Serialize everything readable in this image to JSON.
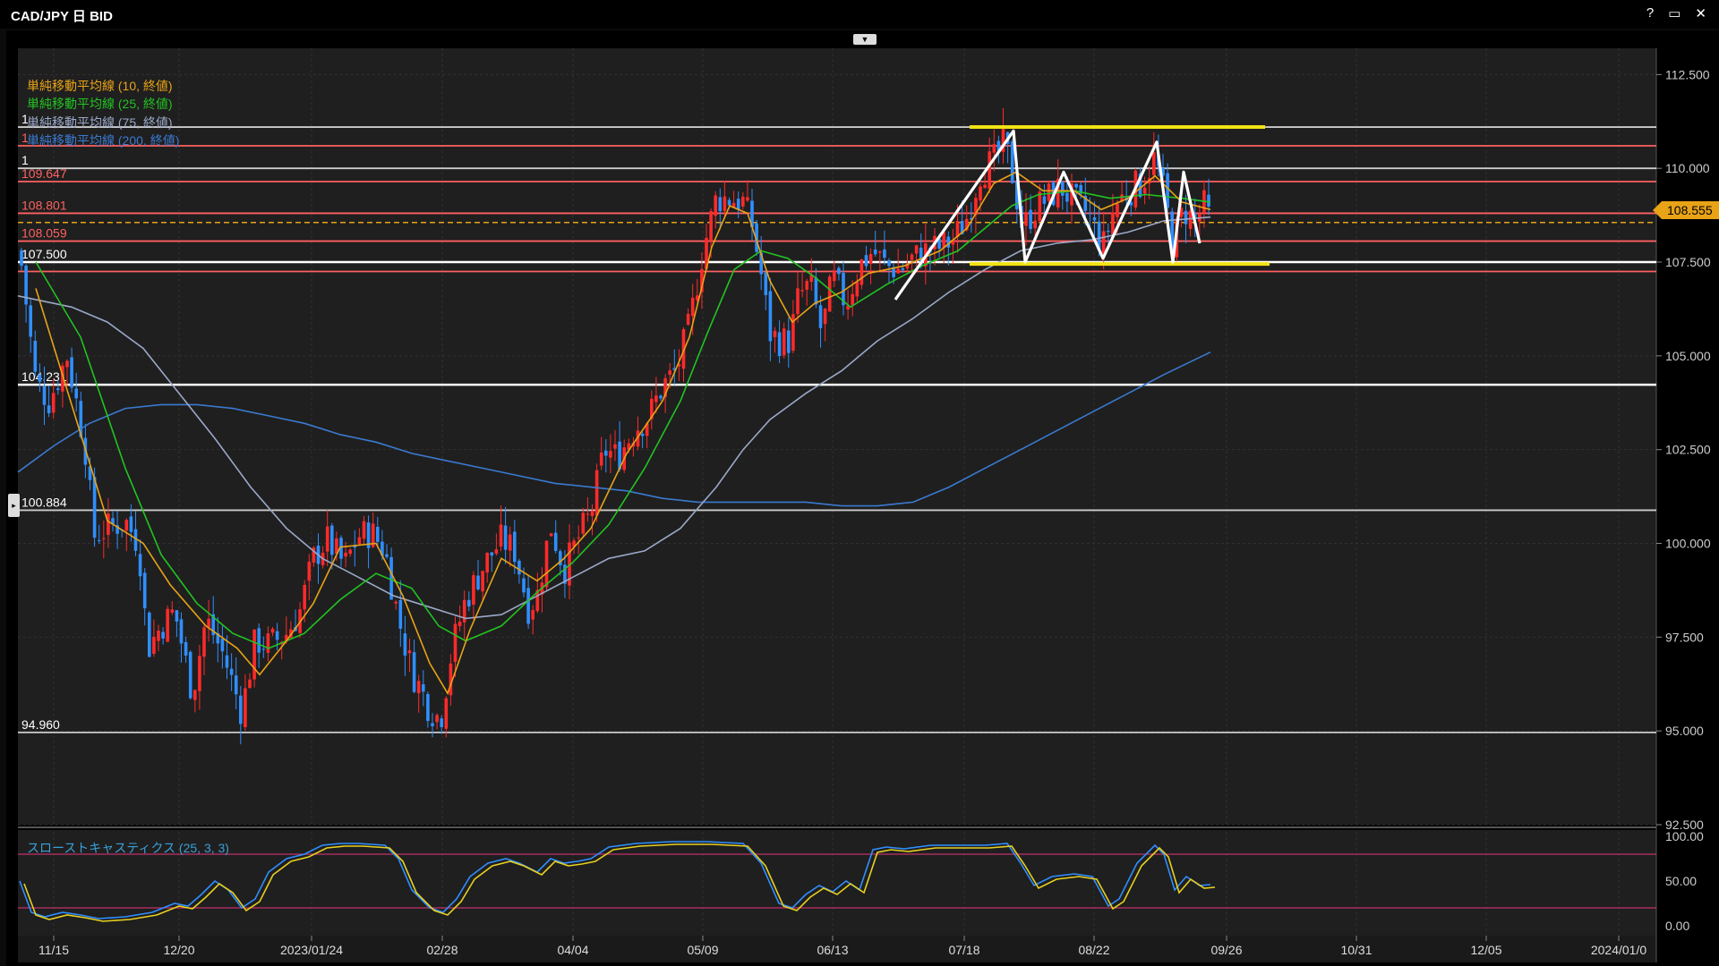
{
  "window": {
    "title": "CAD/JPY 日 BID",
    "controls": [
      "?",
      "▭",
      "✕"
    ]
  },
  "legend": [
    {
      "label": "単純移動平均線 (10, 終値)",
      "color": "#e8a317"
    },
    {
      "label": "単純移動平均線 (25, 終値)",
      "color": "#22c322"
    },
    {
      "label": "単純移動平均線 (75, 終値)",
      "color": "#9aa8c8"
    },
    {
      "label": "単純移動平均線 (200, 終値)",
      "color": "#3a7ad0"
    }
  ],
  "oscillator_label": "スローストキャスティクス (25, 3, 3)",
  "current_price": "108.555",
  "chart_data": {
    "type": "line",
    "title": "CAD/JPY 日 BID",
    "y_range": [
      92.5,
      113.2
    ],
    "y_ticks": [
      "112.500",
      "110.000",
      "107.500",
      "105.000",
      "102.500",
      "100.000",
      "97.500",
      "95.000",
      "92.500"
    ],
    "x_ticks": [
      "11/15",
      "12/20",
      "2023/01/24",
      "02/28",
      "04/04",
      "05/09",
      "06/13",
      "07/18",
      "08/22",
      "09/26",
      "10/31",
      "12/05",
      "2024/01/0"
    ],
    "levels": [
      {
        "value": 111.1,
        "color": "#cccccc",
        "label": "1"
      },
      {
        "value": 110.6,
        "color": "#ff6060",
        "label": "1"
      },
      {
        "value": 110.0,
        "color": "#cccccc",
        "label": "1"
      },
      {
        "value": 109.647,
        "color": "#ff6060",
        "label": "109.647"
      },
      {
        "value": 108.801,
        "color": "#ff6060",
        "label": "108.801"
      },
      {
        "value": 108.555,
        "color": "#e8a317",
        "dashed": true,
        "label": ""
      },
      {
        "value": 108.059,
        "color": "#ff6060",
        "label": "108.059"
      },
      {
        "value": 107.5,
        "color": "#ffffff",
        "label": "107.500"
      },
      {
        "value": 107.25,
        "color": "#ff6060",
        "label": ""
      },
      {
        "value": 104.231,
        "color": "#ffffff",
        "label": "104.231"
      },
      {
        "value": 100.884,
        "color": "#cccccc",
        "label": "100.884"
      },
      {
        "value": 94.96,
        "color": "#cccccc",
        "label": "94.960"
      }
    ],
    "trendlines_yellow": [
      {
        "from": [
          1083,
          111.1
        ],
        "to": [
          1413,
          111.1
        ]
      },
      {
        "from": [
          1083,
          107.45
        ],
        "to": [
          1418,
          107.45
        ]
      }
    ],
    "price_anchors": [
      [
        22,
        107.8
      ],
      [
        40,
        104.3
      ],
      [
        55,
        103.8
      ],
      [
        75,
        105.0
      ],
      [
        95,
        102.6
      ],
      [
        105,
        100.2
      ],
      [
        120,
        100.4
      ],
      [
        140,
        100.6
      ],
      [
        155,
        100.0
      ],
      [
        165,
        97.2
      ],
      [
        180,
        97.8
      ],
      [
        195,
        98.2
      ],
      [
        215,
        96.0
      ],
      [
        230,
        98.0
      ],
      [
        250,
        97.0
      ],
      [
        270,
        95.5
      ],
      [
        285,
        97.4
      ],
      [
        300,
        97.3
      ],
      [
        320,
        97.6
      ],
      [
        335,
        98.2
      ],
      [
        350,
        99.6
      ],
      [
        365,
        100.1
      ],
      [
        385,
        99.4
      ],
      [
        400,
        100.2
      ],
      [
        415,
        100.3
      ],
      [
        430,
        99.8
      ],
      [
        445,
        98.0
      ],
      [
        460,
        96.6
      ],
      [
        480,
        95.6
      ],
      [
        492,
        95.3
      ],
      [
        505,
        97.2
      ],
      [
        520,
        98.5
      ],
      [
        540,
        99.4
      ],
      [
        560,
        100.1
      ],
      [
        575,
        99.8
      ],
      [
        590,
        98.3
      ],
      [
        600,
        98.6
      ],
      [
        615,
        100.5
      ],
      [
        630,
        99.3
      ],
      [
        645,
        100.1
      ],
      [
        660,
        100.8
      ],
      [
        675,
        102.5
      ],
      [
        690,
        102.3
      ],
      [
        710,
        103.1
      ],
      [
        725,
        103.4
      ],
      [
        740,
        104.2
      ],
      [
        755,
        104.6
      ],
      [
        770,
        105.8
      ],
      [
        785,
        107.8
      ],
      [
        800,
        109.2
      ],
      [
        815,
        109.2
      ],
      [
        830,
        109.1
      ],
      [
        840,
        108.5
      ],
      [
        850,
        107.2
      ],
      [
        860,
        105.6
      ],
      [
        872,
        105.4
      ],
      [
        882,
        105.4
      ],
      [
        892,
        106.6
      ],
      [
        905,
        106.9
      ],
      [
        918,
        105.6
      ],
      [
        930,
        107.1
      ],
      [
        945,
        106.4
      ],
      [
        960,
        107.4
      ],
      [
        975,
        107.8
      ],
      [
        990,
        107.4
      ],
      [
        1005,
        107.3
      ],
      [
        1020,
        107.6
      ],
      [
        1035,
        107.8
      ],
      [
        1050,
        107.9
      ],
      [
        1065,
        108.1
      ],
      [
        1080,
        108.7
      ],
      [
        1095,
        109.9
      ],
      [
        1110,
        110.2
      ],
      [
        1122,
        110.7
      ],
      [
        1132,
        109.7
      ],
      [
        1142,
        108.4
      ],
      [
        1155,
        108.9
      ],
      [
        1170,
        109.2
      ],
      [
        1185,
        109.5
      ],
      [
        1200,
        109.1
      ],
      [
        1215,
        108.8
      ],
      [
        1232,
        107.9
      ],
      [
        1245,
        109.0
      ],
      [
        1260,
        109.4
      ],
      [
        1275,
        109.6
      ],
      [
        1290,
        110.3
      ],
      [
        1300,
        109.3
      ],
      [
        1310,
        108.0
      ],
      [
        1322,
        108.9
      ],
      [
        1335,
        108.6
      ],
      [
        1345,
        109.0
      ],
      [
        1352,
        108.6
      ]
    ],
    "ma10": [
      [
        40,
        106.8
      ],
      [
        80,
        103.7
      ],
      [
        120,
        100.6
      ],
      [
        160,
        100.0
      ],
      [
        190,
        98.9
      ],
      [
        230,
        97.8
      ],
      [
        265,
        97.2
      ],
      [
        290,
        96.5
      ],
      [
        320,
        97.4
      ],
      [
        350,
        98.4
      ],
      [
        380,
        99.9
      ],
      [
        420,
        100.0
      ],
      [
        450,
        98.6
      ],
      [
        480,
        96.8
      ],
      [
        500,
        96.0
      ],
      [
        525,
        97.7
      ],
      [
        560,
        99.6
      ],
      [
        600,
        99.0
      ],
      [
        630,
        99.6
      ],
      [
        660,
        100.4
      ],
      [
        700,
        102.4
      ],
      [
        740,
        103.8
      ],
      [
        770,
        105.5
      ],
      [
        795,
        107.9
      ],
      [
        815,
        109.0
      ],
      [
        835,
        108.8
      ],
      [
        860,
        107.0
      ],
      [
        885,
        105.9
      ],
      [
        910,
        106.4
      ],
      [
        940,
        106.7
      ],
      [
        970,
        107.2
      ],
      [
        1010,
        107.4
      ],
      [
        1050,
        107.8
      ],
      [
        1080,
        108.4
      ],
      [
        1110,
        109.6
      ],
      [
        1135,
        109.9
      ],
      [
        1165,
        109.4
      ],
      [
        1200,
        109.4
      ],
      [
        1230,
        108.9
      ],
      [
        1260,
        109.2
      ],
      [
        1290,
        109.8
      ],
      [
        1320,
        109.1
      ],
      [
        1352,
        108.9
      ]
    ],
    "ma25": [
      [
        40,
        107.5
      ],
      [
        90,
        105.5
      ],
      [
        140,
        102.0
      ],
      [
        180,
        99.7
      ],
      [
        220,
        98.4
      ],
      [
        260,
        97.6
      ],
      [
        300,
        97.2
      ],
      [
        340,
        97.6
      ],
      [
        380,
        98.5
      ],
      [
        420,
        99.2
      ],
      [
        460,
        98.8
      ],
      [
        490,
        97.8
      ],
      [
        520,
        97.4
      ],
      [
        560,
        97.8
      ],
      [
        600,
        98.7
      ],
      [
        640,
        99.5
      ],
      [
        680,
        100.5
      ],
      [
        720,
        102.0
      ],
      [
        760,
        103.8
      ],
      [
        790,
        105.6
      ],
      [
        820,
        107.3
      ],
      [
        850,
        107.8
      ],
      [
        880,
        107.6
      ],
      [
        910,
        107.1
      ],
      [
        950,
        106.3
      ],
      [
        990,
        106.9
      ],
      [
        1030,
        107.4
      ],
      [
        1070,
        107.8
      ],
      [
        1100,
        108.4
      ],
      [
        1130,
        109.0
      ],
      [
        1160,
        109.3
      ],
      [
        1200,
        109.4
      ],
      [
        1240,
        109.2
      ],
      [
        1280,
        109.3
      ],
      [
        1320,
        109.2
      ],
      [
        1352,
        109.1
      ]
    ],
    "ma75": [
      [
        20,
        106.6
      ],
      [
        80,
        106.3
      ],
      [
        120,
        105.9
      ],
      [
        160,
        105.2
      ],
      [
        200,
        104.0
      ],
      [
        240,
        102.8
      ],
      [
        280,
        101.5
      ],
      [
        320,
        100.4
      ],
      [
        360,
        99.6
      ],
      [
        400,
        99.1
      ],
      [
        440,
        98.6
      ],
      [
        480,
        98.3
      ],
      [
        520,
        98.0
      ],
      [
        560,
        98.1
      ],
      [
        600,
        98.6
      ],
      [
        640,
        99.1
      ],
      [
        680,
        99.6
      ],
      [
        720,
        99.8
      ],
      [
        760,
        100.4
      ],
      [
        800,
        101.5
      ],
      [
        830,
        102.5
      ],
      [
        860,
        103.3
      ],
      [
        900,
        104.0
      ],
      [
        940,
        104.6
      ],
      [
        980,
        105.4
      ],
      [
        1020,
        106.0
      ],
      [
        1060,
        106.7
      ],
      [
        1100,
        107.3
      ],
      [
        1140,
        107.8
      ],
      [
        1180,
        108.0
      ],
      [
        1220,
        108.1
      ],
      [
        1260,
        108.3
      ],
      [
        1300,
        108.6
      ],
      [
        1352,
        108.7
      ]
    ],
    "ma200": [
      [
        20,
        101.9
      ],
      [
        60,
        102.6
      ],
      [
        100,
        103.2
      ],
      [
        140,
        103.6
      ],
      [
        180,
        103.7
      ],
      [
        220,
        103.7
      ],
      [
        260,
        103.6
      ],
      [
        300,
        103.4
      ],
      [
        340,
        103.2
      ],
      [
        380,
        102.9
      ],
      [
        420,
        102.7
      ],
      [
        460,
        102.4
      ],
      [
        500,
        102.2
      ],
      [
        540,
        102.0
      ],
      [
        580,
        101.8
      ],
      [
        620,
        101.6
      ],
      [
        660,
        101.5
      ],
      [
        700,
        101.4
      ],
      [
        740,
        101.2
      ],
      [
        780,
        101.1
      ],
      [
        820,
        101.1
      ],
      [
        860,
        101.1
      ],
      [
        900,
        101.1
      ],
      [
        940,
        101.0
      ],
      [
        980,
        101.0
      ],
      [
        1020,
        101.1
      ],
      [
        1060,
        101.5
      ],
      [
        1100,
        102.0
      ],
      [
        1140,
        102.5
      ],
      [
        1180,
        103.0
      ],
      [
        1220,
        103.5
      ],
      [
        1260,
        104.0
      ],
      [
        1300,
        104.5
      ],
      [
        1352,
        105.1
      ]
    ],
    "stoch_k": [
      [
        22,
        50
      ],
      [
        35,
        15
      ],
      [
        50,
        10
      ],
      [
        70,
        15
      ],
      [
        90,
        12
      ],
      [
        110,
        8
      ],
      [
        140,
        10
      ],
      [
        170,
        15
      ],
      [
        195,
        25
      ],
      [
        210,
        22
      ],
      [
        225,
        35
      ],
      [
        240,
        50
      ],
      [
        255,
        40
      ],
      [
        270,
        20
      ],
      [
        285,
        30
      ],
      [
        300,
        60
      ],
      [
        320,
        75
      ],
      [
        340,
        80
      ],
      [
        360,
        90
      ],
      [
        380,
        92
      ],
      [
        400,
        92
      ],
      [
        430,
        90
      ],
      [
        445,
        75
      ],
      [
        460,
        40
      ],
      [
        480,
        20
      ],
      [
        495,
        15
      ],
      [
        510,
        30
      ],
      [
        525,
        55
      ],
      [
        545,
        70
      ],
      [
        565,
        75
      ],
      [
        580,
        70
      ],
      [
        600,
        60
      ],
      [
        615,
        75
      ],
      [
        630,
        70
      ],
      [
        645,
        72
      ],
      [
        660,
        75
      ],
      [
        680,
        88
      ],
      [
        710,
        92
      ],
      [
        750,
        94
      ],
      [
        790,
        94
      ],
      [
        830,
        92
      ],
      [
        850,
        70
      ],
      [
        870,
        25
      ],
      [
        885,
        20
      ],
      [
        900,
        35
      ],
      [
        915,
        45
      ],
      [
        930,
        38
      ],
      [
        945,
        50
      ],
      [
        960,
        40
      ],
      [
        975,
        85
      ],
      [
        990,
        88
      ],
      [
        1010,
        86
      ],
      [
        1040,
        90
      ],
      [
        1070,
        90
      ],
      [
        1100,
        90
      ],
      [
        1125,
        92
      ],
      [
        1140,
        70
      ],
      [
        1155,
        45
      ],
      [
        1175,
        55
      ],
      [
        1200,
        58
      ],
      [
        1220,
        55
      ],
      [
        1238,
        22
      ],
      [
        1250,
        30
      ],
      [
        1270,
        70
      ],
      [
        1290,
        90
      ],
      [
        1300,
        80
      ],
      [
        1312,
        40
      ],
      [
        1325,
        55
      ],
      [
        1340,
        45
      ],
      [
        1352,
        46
      ]
    ],
    "stoch_ticks": [
      "100.00",
      "50.00",
      "0.00"
    ]
  }
}
